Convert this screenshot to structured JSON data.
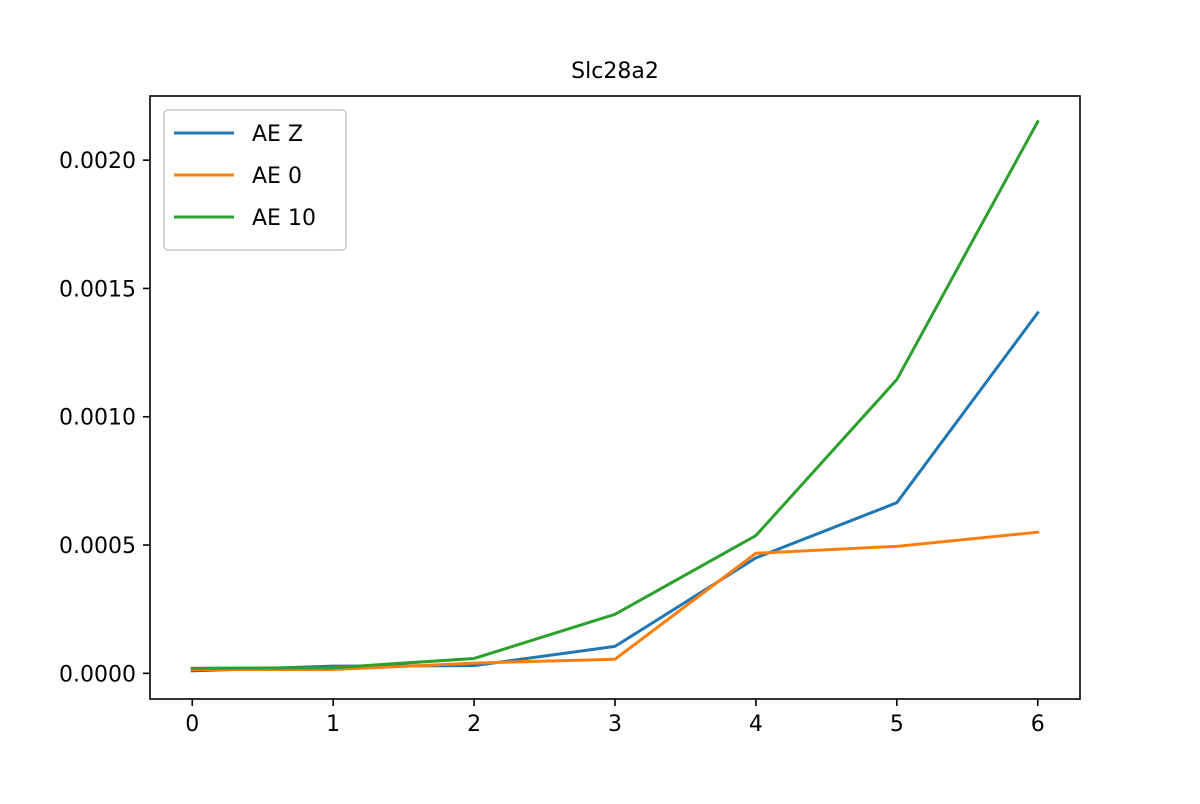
{
  "chart_data": {
    "type": "line",
    "title": "Slc28a2",
    "xlabel": "",
    "ylabel": "",
    "x": [
      0,
      1,
      2,
      3,
      4,
      5,
      6
    ],
    "xlim": [
      -0.3,
      6.3
    ],
    "ylim": [
      -0.0001,
      0.00225
    ],
    "xticks": [
      0,
      1,
      2,
      3,
      4,
      5,
      6
    ],
    "xtick_labels": [
      "0",
      "1",
      "2",
      "3",
      "4",
      "5",
      "6"
    ],
    "yticks": [
      0,
      0.0005,
      0.001,
      0.0015,
      0.002
    ],
    "ytick_labels": [
      "0.0000",
      "0.0005",
      "0.0010",
      "0.0015",
      "0.0020"
    ],
    "grid": false,
    "legend_position": "upper-left",
    "series": [
      {
        "name": "AE Z",
        "color": "#1f77b4",
        "values": [
          1e-05,
          2.8e-05,
          3e-05,
          0.000105,
          0.00045,
          0.000665,
          0.001405
        ]
      },
      {
        "name": "AE 0",
        "color": "#ff7f0e",
        "values": [
          1.5e-05,
          1.5e-05,
          4e-05,
          5.5e-05,
          0.000468,
          0.000495,
          0.00055
        ]
      },
      {
        "name": "AE 10",
        "color": "#2ca02c",
        "values": [
          2e-05,
          2.2e-05,
          5.8e-05,
          0.00023,
          0.000537,
          0.001145,
          0.00215
        ]
      }
    ]
  }
}
